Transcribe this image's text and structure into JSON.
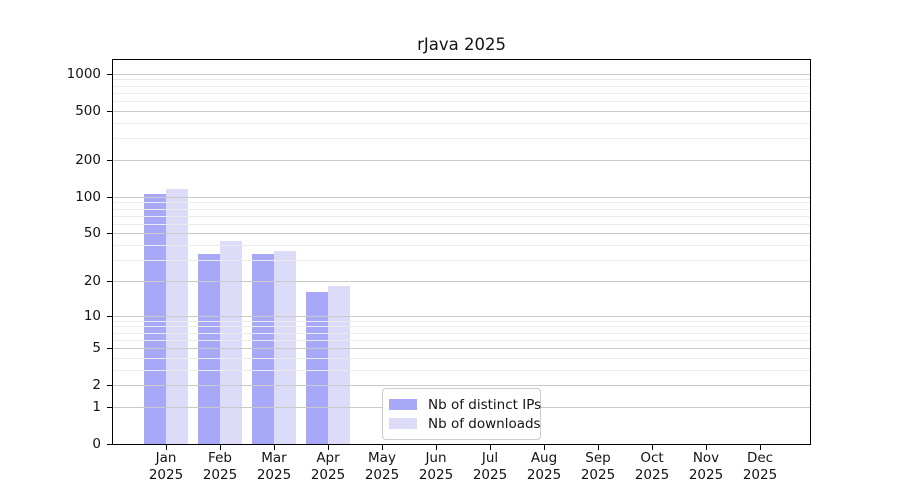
{
  "chart_data": {
    "type": "bar",
    "title": "rJava 2025",
    "categories": [
      "Jan",
      "Feb",
      "Mar",
      "Apr",
      "May",
      "Jun",
      "Jul",
      "Aug",
      "Sep",
      "Oct",
      "Nov",
      "Dec"
    ],
    "x_tick_line2": "2025",
    "series": [
      {
        "name": "Nb of distinct IPs",
        "color": "#a8a8f8",
        "values": [
          106,
          34,
          34,
          16,
          0,
          0,
          0,
          0,
          0,
          0,
          0,
          0
        ]
      },
      {
        "name": "Nb of downloads",
        "color": "#dcdcf8",
        "values": [
          115,
          43,
          36,
          18,
          0,
          0,
          0,
          0,
          0,
          0,
          0,
          0
        ]
      }
    ],
    "y_axis": {
      "scale": "log1p",
      "major_ticks": [
        0,
        1,
        2,
        5,
        10,
        20,
        50,
        100,
        200,
        500,
        1000
      ],
      "minor_gridlines": [
        3,
        4,
        6,
        7,
        8,
        9,
        30,
        40,
        60,
        70,
        80,
        90,
        300,
        400,
        600,
        700,
        800,
        900
      ],
      "ylim": [
        0,
        1300
      ]
    },
    "grid": "on",
    "legend": {
      "position": "lower center-left",
      "entries": [
        "Nb of distinct IPs",
        "Nb of downloads"
      ]
    },
    "colors": {
      "grid_major": "#c9c9c9",
      "grid_minor": "#ebebeb",
      "axis": "#000000",
      "text": "#141414",
      "legend_border": "#cccccc",
      "legend_bg": "#ffffff"
    }
  }
}
